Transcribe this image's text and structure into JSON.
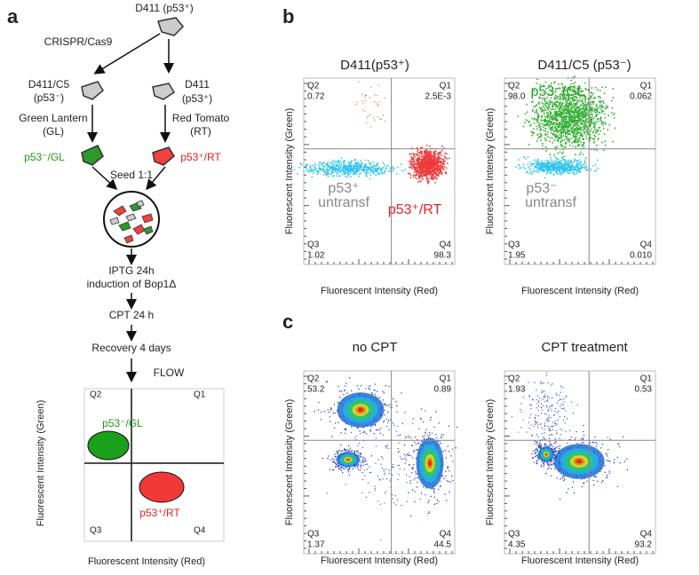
{
  "panel_a": {
    "label": "a",
    "parent": "D411 (p53⁺)",
    "method": "CRISPR/Cas9",
    "left_clone": [
      "D411/C5",
      "(p53⁻)"
    ],
    "right_clone": [
      "D411",
      "(p53⁺)"
    ],
    "left_label": [
      "Green Lantern",
      "(GL)"
    ],
    "right_label": [
      "Red Tomato",
      "(RT)"
    ],
    "left_product": "p53⁻/GL",
    "right_product": "p53⁺/RT",
    "seed": "Seed 1:1",
    "steps": [
      "IPTG 24h",
      "induction of Bop1Δ",
      "CPT 24 h",
      "Recovery 4 days"
    ],
    "flow": "FLOW",
    "schematic": {
      "quadrants": [
        "Q2",
        "Q1",
        "Q3",
        "Q4"
      ],
      "green_label": "p53⁻/GL",
      "red_label": "p53⁺/RT",
      "x_label": "Fluorescent Intensity (Red)",
      "y_label": "Fluorescent Intensity (Green)"
    }
  },
  "panel_b": {
    "label": "b",
    "plots": [
      {
        "title": "D411(p53⁺)",
        "quadrants": [
          [
            "Q2",
            "0.72"
          ],
          [
            "Q1",
            "2.5E-3"
          ],
          [
            "Q3",
            "1.02"
          ],
          [
            "Q4",
            "98.3"
          ]
        ],
        "annotations": [
          "p53⁺",
          "untransf",
          "p53⁺/RT"
        ],
        "x_label": "Fluorescent Intensity (Red)",
        "y_label": "Fluorescent Intensity (Green)"
      },
      {
        "title": "D411/C5 (p53⁻)",
        "quadrants": [
          [
            "Q2",
            "98.0"
          ],
          [
            "Q1",
            "0.062"
          ],
          [
            "Q3",
            "1.95"
          ],
          [
            "Q4",
            "0.010"
          ]
        ],
        "annotations": [
          "p53⁻/GL",
          "p53⁻",
          "untransf"
        ],
        "x_label": "Fluorescent Intensity (Red)",
        "y_label": "Fluorescent Intensity (Green)"
      }
    ]
  },
  "panel_c": {
    "label": "c",
    "plots": [
      {
        "title": "no CPT",
        "quadrants": [
          [
            "Q2",
            "53.2"
          ],
          [
            "Q1",
            "0.89"
          ],
          [
            "Q3",
            "1.37"
          ],
          [
            "Q4",
            "44.5"
          ]
        ],
        "x_label": "Fluorescent Intensity (Red)",
        "y_label": "Fluorescent Intensity (Green)"
      },
      {
        "title": "CPT treatment",
        "quadrants": [
          [
            "Q2",
            "1.93"
          ],
          [
            "Q1",
            "0.53"
          ],
          [
            "Q3",
            "4.35"
          ],
          [
            "Q4",
            "93.2"
          ]
        ],
        "x_label": "Fluorescent Intensity (Red)",
        "y_label": "Fluorescent Intensity (Green)"
      }
    ]
  }
}
